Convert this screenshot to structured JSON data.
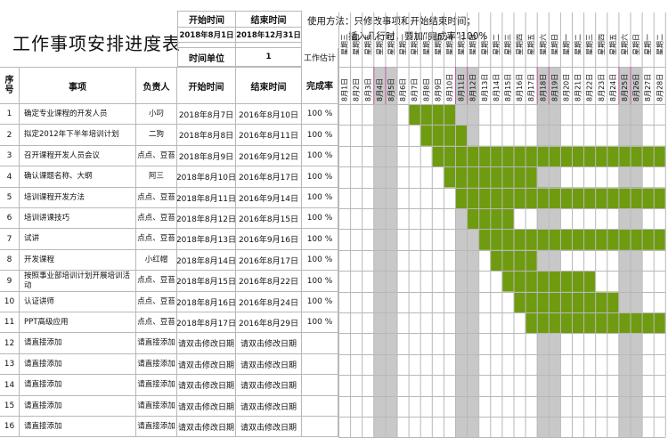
{
  "title": "工作事项安排进度表",
  "meta": {
    "start_label": "开始时间",
    "end_label": "结束时间",
    "start_value": "2018年8月1日",
    "end_value": "2018年12月31日",
    "unit_label": "时间单位",
    "unit_value": "1",
    "workload_label": "工作估计"
  },
  "instructions": {
    "line1": "使用方法：只修改事项和开始结束时间；",
    "line2": "插入几行时，要加“完成率”100%"
  },
  "columns": {
    "seq": "序号",
    "item": "事项",
    "owner": "负责人",
    "start": "开始时间",
    "end": "结束时间",
    "rate": "完成率"
  },
  "rows": [
    {
      "no": "1",
      "item": "确定专业课程的开发人员",
      "owner": "小叼",
      "start": "2018年8月7日",
      "end": "2016年8月10日",
      "rate": "100 %"
    },
    {
      "no": "2",
      "item": "拟定2012年下半年培训计划",
      "owner": "二狗",
      "start": "2018年8月8日",
      "end": "2016年8月11日",
      "rate": "100 %"
    },
    {
      "no": "3",
      "item": "召开课程开发人员会议",
      "owner": "点点、豆苔",
      "start": "2018年8月9日",
      "end": "2016年9月12日",
      "rate": "100 %"
    },
    {
      "no": "4",
      "item": "确认课题名称、大纲",
      "owner": "阿三",
      "start": "2018年8月10日",
      "end": "2016年8月17日",
      "rate": "100 %"
    },
    {
      "no": "5",
      "item": "培训课程开发方法",
      "owner": "点点、豆苔",
      "start": "2018年8月11日",
      "end": "2016年9月14日",
      "rate": "100 %"
    },
    {
      "no": "6",
      "item": "培训讲课技巧",
      "owner": "点点、豆苔",
      "start": "2018年8月12日",
      "end": "2016年8月15日",
      "rate": "100 %"
    },
    {
      "no": "7",
      "item": "试讲",
      "owner": "点点、豆苔",
      "start": "2018年8月13日",
      "end": "2016年9月16日",
      "rate": "100 %"
    },
    {
      "no": "8",
      "item": "开发课程",
      "owner": "小红帽",
      "start": "2018年8月14日",
      "end": "2016年8月17日",
      "rate": "100 %"
    },
    {
      "no": "9",
      "item": "按照事业部培训计划开展培训活动",
      "owner": "点点、豆苔",
      "start": "2018年8月15日",
      "end": "2016年8月22日",
      "rate": "100 %"
    },
    {
      "no": "10",
      "item": "认证讲师",
      "owner": "点点、豆苔",
      "start": "2018年8月16日",
      "end": "2016年8月24日",
      "rate": "100 %"
    },
    {
      "no": "11",
      "item": "PPT高级应用",
      "owner": "点点、豆苔",
      "start": "2018年8月17日",
      "end": "2016年8月29日",
      "rate": "100 %"
    },
    {
      "no": "12",
      "item": "请直接添加",
      "owner": "请直接添加",
      "start": "请双击修改日期",
      "end": "请双击修改日期",
      "rate": ""
    },
    {
      "no": "13",
      "item": "请直接添加",
      "owner": "请直接添加",
      "start": "请双击修改日期",
      "end": "请双击修改日期",
      "rate": ""
    },
    {
      "no": "14",
      "item": "请直接添加",
      "owner": "请直接添加",
      "start": "请双击修改日期",
      "end": "请双击修改日期",
      "rate": ""
    },
    {
      "no": "15",
      "item": "请直接添加",
      "owner": "请直接添加",
      "start": "请双击修改日期",
      "end": "请双击修改日期",
      "rate": ""
    },
    {
      "no": "16",
      "item": "请直接添加",
      "owner": "请直接添加",
      "start": "请双击修改日期",
      "end": "请双击修改日期",
      "rate": ""
    }
  ],
  "gantt": {
    "days": [
      "8月1日",
      "8月2日",
      "8月3日",
      "8月4日",
      "8月5日",
      "8月6日",
      "8月7日",
      "8月8日",
      "8月9日",
      "8月10日",
      "8月11日",
      "8月12日",
      "8月13日",
      "8月14日",
      "8月15日",
      "8月16日",
      "8月17日",
      "8月18日",
      "8月19日",
      "8月20日",
      "8月21日",
      "8月22日",
      "8月23日",
      "8月24日",
      "8月25日",
      "8月26日",
      "8月27日",
      "8月28日"
    ],
    "weekdays": [
      "星期三",
      "星期四",
      "星期五",
      "星期六",
      "星期日",
      "星期一",
      "星期二",
      "星期三",
      "星期四",
      "星期五",
      "星期六",
      "星期日",
      "星期一",
      "星期二",
      "星期三",
      "星期四",
      "星期五",
      "星期六",
      "星期日",
      "星期一",
      "星期二",
      "星期三",
      "星期四",
      "星期五",
      "星期六",
      "星期日",
      "星期一",
      "星期二"
    ],
    "weekend_days": [
      4,
      5,
      11,
      12,
      18,
      19,
      25,
      26
    ],
    "bars": [
      {
        "row": 1,
        "start": 7,
        "end": 10
      },
      {
        "row": 2,
        "start": 8,
        "end": 11
      },
      {
        "row": 3,
        "start": 9,
        "end": 28
      },
      {
        "row": 4,
        "start": 10,
        "end": 17
      },
      {
        "row": 5,
        "start": 11,
        "end": 28
      },
      {
        "row": 6,
        "start": 12,
        "end": 15
      },
      {
        "row": 7,
        "start": 13,
        "end": 28
      },
      {
        "row": 8,
        "start": 14,
        "end": 17
      },
      {
        "row": 9,
        "start": 15,
        "end": 22
      },
      {
        "row": 10,
        "start": 16,
        "end": 24
      },
      {
        "row": 11,
        "start": 17,
        "end": 28
      }
    ],
    "colors": {
      "bar": "#6f9b10",
      "weekend": "#c8c8c8",
      "grid": "#b8b8b8",
      "marker": "#c060a0"
    }
  }
}
